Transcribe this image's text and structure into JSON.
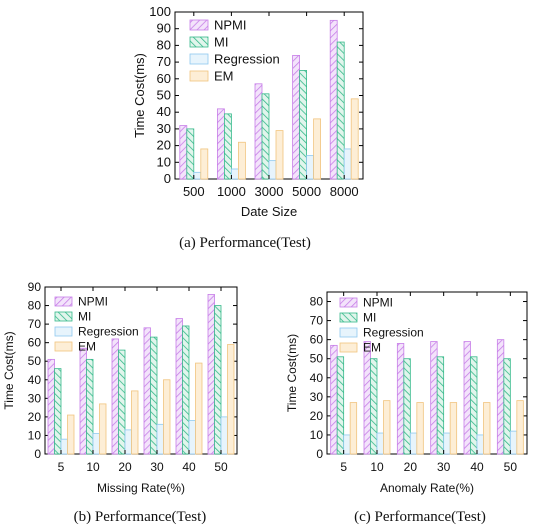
{
  "chart_data": [
    {
      "type": "bar",
      "caption": "(a) Performance(Test)",
      "xlabel": "Date Size",
      "ylabel": "Time Cost(ms)",
      "categories": [
        "500",
        "1000",
        "3000",
        "5000",
        "8000"
      ],
      "ylim": [
        0,
        100
      ],
      "yticks": [
        0,
        10,
        20,
        30,
        40,
        50,
        60,
        70,
        80,
        90,
        100
      ],
      "legend_position": "top-right",
      "series": [
        {
          "name": "NPMI",
          "values": [
            32,
            42,
            57,
            74,
            95
          ]
        },
        {
          "name": "MI",
          "values": [
            30,
            39,
            51,
            65,
            82
          ]
        },
        {
          "name": "Regression",
          "values": [
            4,
            6,
            11,
            14,
            18
          ]
        },
        {
          "name": "EM",
          "values": [
            18,
            22,
            29,
            36,
            48
          ]
        }
      ]
    },
    {
      "type": "bar",
      "caption": "(b)  Performance(Test)",
      "xlabel": "Missing Rate(%)",
      "ylabel": "Time Cost(ms)",
      "categories": [
        "5",
        "10",
        "20",
        "30",
        "40",
        "50"
      ],
      "ylim": [
        0,
        90
      ],
      "yticks": [
        0,
        10,
        20,
        30,
        40,
        50,
        60,
        70,
        80,
        90
      ],
      "legend_position": "top-left",
      "series": [
        {
          "name": "NPMI",
          "values": [
            51,
            57,
            62,
            68,
            73,
            86
          ]
        },
        {
          "name": "MI",
          "values": [
            46,
            51,
            56,
            63,
            69,
            80
          ]
        },
        {
          "name": "Regression",
          "values": [
            8,
            11,
            13,
            16,
            18,
            20
          ]
        },
        {
          "name": "EM",
          "values": [
            21,
            27,
            34,
            40,
            49,
            59
          ]
        }
      ]
    },
    {
      "type": "bar",
      "caption": "(c)  Performance(Test)",
      "xlabel": "Anomaly Rate(%)",
      "ylabel": "Time Cost(ms)",
      "categories": [
        "5",
        "10",
        "20",
        "30",
        "40",
        "50"
      ],
      "ylim": [
        0,
        85
      ],
      "yticks": [
        0,
        10,
        20,
        30,
        40,
        50,
        60,
        70,
        80
      ],
      "legend_position": "top-left",
      "series": [
        {
          "name": "NPMI",
          "values": [
            57,
            59,
            58,
            59,
            59,
            60
          ]
        },
        {
          "name": "MI",
          "values": [
            51,
            50,
            50,
            51,
            51,
            50
          ]
        },
        {
          "name": "Regression",
          "values": [
            10,
            11,
            11,
            11,
            10,
            12
          ]
        },
        {
          "name": "EM",
          "values": [
            27,
            28,
            27,
            27,
            27,
            28
          ]
        }
      ]
    }
  ],
  "style": {
    "series_colors": [
      "#c77ee8",
      "#35b98a",
      "#8ec9ef",
      "#f1c47e"
    ],
    "series_fills": [
      "#f3e3fb",
      "#e1f5ec",
      "#e7f4fc",
      "#fdeed6"
    ],
    "series_patterns": [
      "diagonal-hatch",
      "diagonal-hatch",
      "solid",
      "solid"
    ]
  }
}
